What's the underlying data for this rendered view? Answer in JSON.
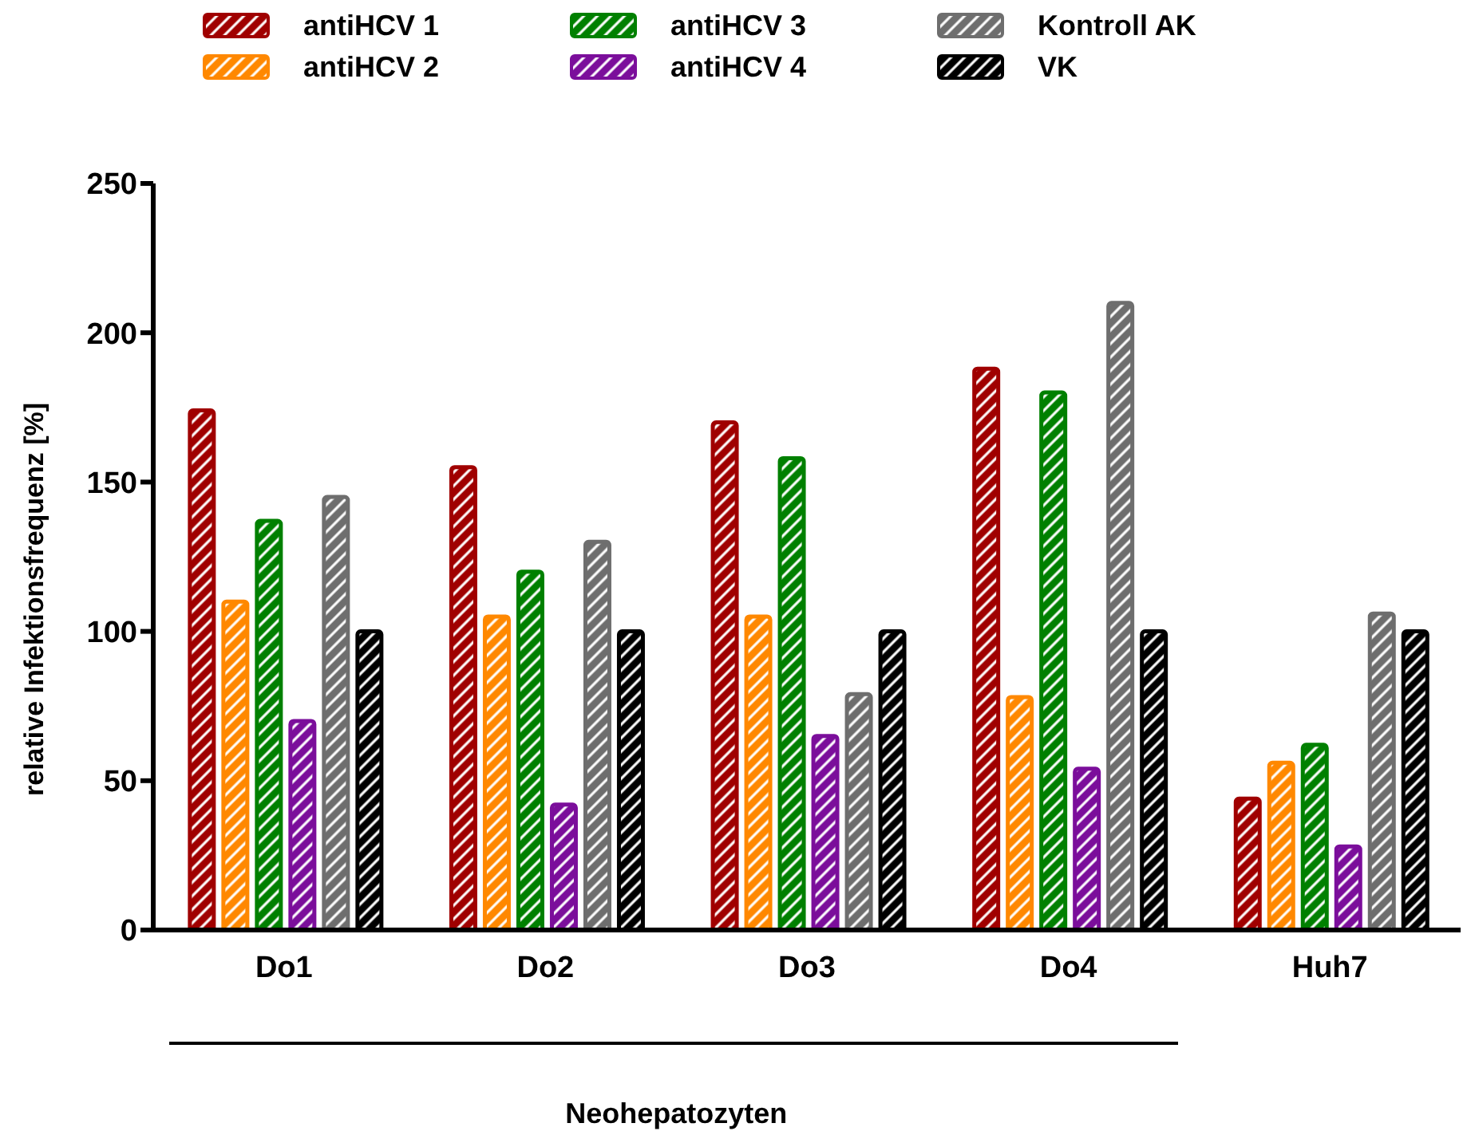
{
  "chart_data": {
    "type": "bar",
    "ylabel": "relative Infektionsfrequenz [%]",
    "xlabel": "Neohepatozyten",
    "categories": [
      "Do1",
      "Do2",
      "Do3",
      "Do4",
      "Huh7"
    ],
    "series": [
      {
        "name": "antiHCV 1",
        "color": "#a00000",
        "values": [
          174,
          155,
          170,
          188,
          44
        ]
      },
      {
        "name": "antiHCV 2",
        "color": "#ff8800",
        "values": [
          110,
          105,
          105,
          78,
          56
        ]
      },
      {
        "name": "antiHCV 3",
        "color": "#008000",
        "values": [
          137,
          120,
          158,
          180,
          62
        ]
      },
      {
        "name": "antiHCV 4",
        "color": "#7b0e9b",
        "values": [
          70,
          42,
          65,
          54,
          28
        ]
      },
      {
        "name": "Kontroll AK",
        "color": "#6e6e6e",
        "values": [
          145,
          130,
          79,
          210,
          106
        ]
      },
      {
        "name": "VK",
        "color": "#000000",
        "values": [
          100,
          100,
          100,
          100,
          100
        ]
      }
    ],
    "ylim": [
      0,
      250
    ],
    "yticks": [
      0,
      50,
      100,
      150,
      200,
      250
    ],
    "grid": false,
    "legend": "top"
  }
}
